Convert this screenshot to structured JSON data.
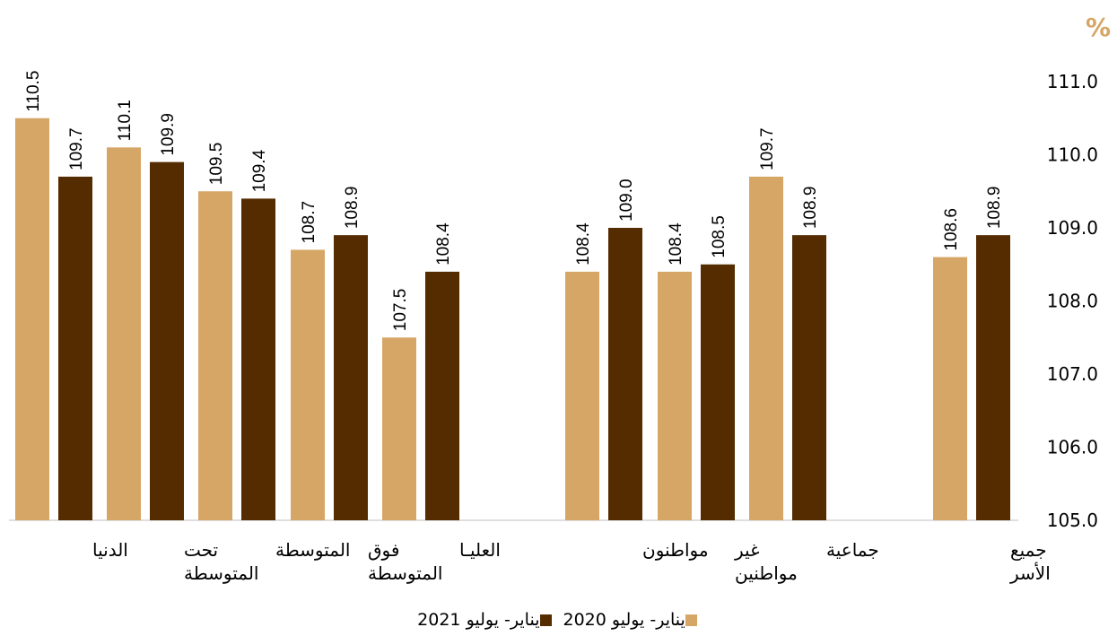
{
  "unit_label": "%",
  "colors": {
    "series_2020": "#d5a666",
    "series_2021": "#552b00",
    "axis": "#bfbfbf"
  },
  "chart_data": {
    "type": "bar",
    "categories": [
      [
        "الدنيا"
      ],
      [
        "تحت",
        "المتوسطة"
      ],
      [
        "المتوسطة"
      ],
      [
        "فوق",
        "المتوسطة"
      ],
      [
        "العليـا"
      ],
      [
        "مواطنون"
      ],
      [
        "غير",
        "مواطنين"
      ],
      [
        "جماعية"
      ],
      [
        "جميع",
        "الأسر"
      ]
    ],
    "series": [
      {
        "name": "يناير- يوليو 2020",
        "values": [
          110.5,
          110.1,
          109.5,
          108.7,
          107.5,
          108.4,
          108.4,
          109.7,
          108.6
        ],
        "labels": [
          "110.5",
          "110.1",
          "109.5",
          "108.7",
          "107.5",
          "108.4",
          "108.4",
          "109.7",
          "108.6"
        ]
      },
      {
        "name": "يناير- يوليو 2021",
        "values": [
          109.7,
          109.9,
          109.4,
          108.9,
          108.4,
          109.0,
          108.5,
          108.9,
          108.9
        ],
        "labels": [
          "109.7",
          "109.9",
          "109.4",
          "108.9",
          "108.4",
          "109.0",
          "108.5",
          "108.9",
          "108.9"
        ]
      }
    ],
    "ylim": [
      105.0,
      111.0
    ],
    "yticks": [
      "105.0",
      "106.0",
      "107.0",
      "108.0",
      "109.0",
      "110.0",
      "111.0"
    ],
    "y_axis_side": "right",
    "grid": false,
    "legend_position": "bottom"
  }
}
